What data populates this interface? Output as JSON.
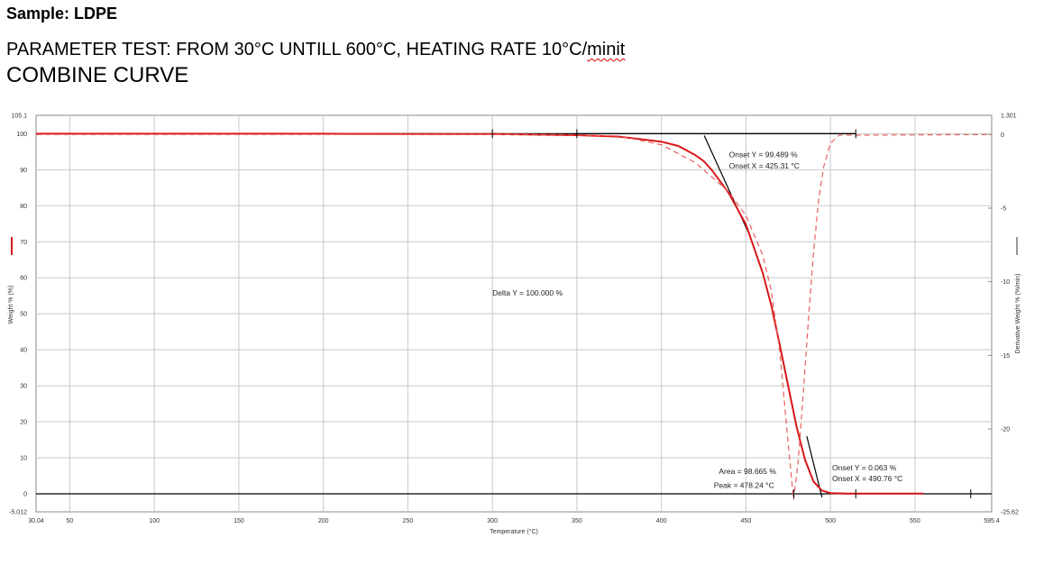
{
  "header": {
    "sample": "Sample: LDPE",
    "param_prefix": "PARAMETER TEST: FROM 30°C UNTILL 600°C, HEATING RATE 10°C/",
    "param_suffix": "minit",
    "curve_title": "COMBINE CURVE"
  },
  "chart_data": {
    "type": "line",
    "xlabel": "Temperature (°C)",
    "ylabel": "Weight % (%)",
    "y2label": "Derivative Weight % (%/min)",
    "xlim": [
      30.04,
      595.4
    ],
    "ylim": [
      -5.012,
      105.1
    ],
    "y2lim": [
      -25.62,
      1.301
    ],
    "x_ticks": [
      50,
      100,
      150,
      200,
      250,
      300,
      350,
      400,
      450,
      500,
      550
    ],
    "x_tick_labels": [
      "30.04",
      "50",
      "100",
      "150",
      "200",
      "250",
      "300",
      "350",
      "400",
      "450",
      "500",
      "550",
      "595.4"
    ],
    "y_ticks": [
      0,
      10,
      20,
      30,
      40,
      50,
      60,
      70,
      80,
      90,
      100
    ],
    "y_tick_labels": [
      "105.1",
      "100",
      "90",
      "80",
      "70",
      "60",
      "50",
      "40",
      "30",
      "20",
      "10",
      "0",
      "-5.012"
    ],
    "y2_ticks": [
      0,
      -5,
      -10,
      -15,
      -20
    ],
    "y2_tick_labels": [
      "1.301",
      "0",
      "-5",
      "-10",
      "-15",
      "-20",
      "-25.62"
    ],
    "grid": true,
    "colors": {
      "weight": "#d81818",
      "derivative": "#e86060",
      "tangent": "#000000",
      "grid": "#c8c8c8"
    },
    "series": [
      {
        "key": "weight",
        "axis": "left",
        "x": [
          30.04,
          100,
          200,
          300,
          350,
          375,
          400,
          410,
          420,
          425,
          430,
          440,
          450,
          460,
          465,
          470,
          475,
          480,
          485,
          490,
          495,
          500,
          510,
          555
        ],
        "y": [
          100,
          100,
          100,
          99.9,
          99.6,
          99.2,
          97.8,
          96.6,
          94.1,
          92.4,
          89.8,
          83.4,
          74.8,
          61.3,
          52.4,
          41.4,
          29.9,
          18.6,
          9.4,
          3.4,
          0.9,
          0.2,
          0.05,
          0.05
        ]
      },
      {
        "key": "derivative",
        "axis": "right",
        "x": [
          30.04,
          300,
          350,
          375,
          400,
          420,
          440,
          450,
          460,
          465,
          470,
          475,
          478.24,
          481,
          484,
          487,
          490,
          493,
          496,
          500,
          505,
          595.4
        ],
        "y": [
          0,
          0,
          -0.02,
          -0.1,
          -0.7,
          -1.9,
          -3.9,
          -5.5,
          -8.2,
          -10.6,
          -14.7,
          -21.0,
          -24.8,
          -22.1,
          -17.5,
          -12.5,
          -8.0,
          -4.5,
          -2.2,
          -0.6,
          -0.05,
          0
        ]
      }
    ],
    "annotations": [
      {
        "text": "Onset Y = 99.489 %",
        "x": 440,
        "y": 93.5
      },
      {
        "text": "Onset X = 425.31 °C",
        "x": 440,
        "y": 90.3
      },
      {
        "text": "Delta Y = 100.000 %",
        "x": 300,
        "y": 55
      },
      {
        "text": "Area = 98.665 %",
        "x": 434,
        "y": 5.5
      },
      {
        "text": "Peak = 478.24 °C",
        "x": 431,
        "y": 1.6
      },
      {
        "text": "Onset Y = 0.063 %",
        "x": 501,
        "y": 6.5
      },
      {
        "text": "Onset X = 490.76 °C",
        "x": 501,
        "y": 3.5
      }
    ]
  }
}
